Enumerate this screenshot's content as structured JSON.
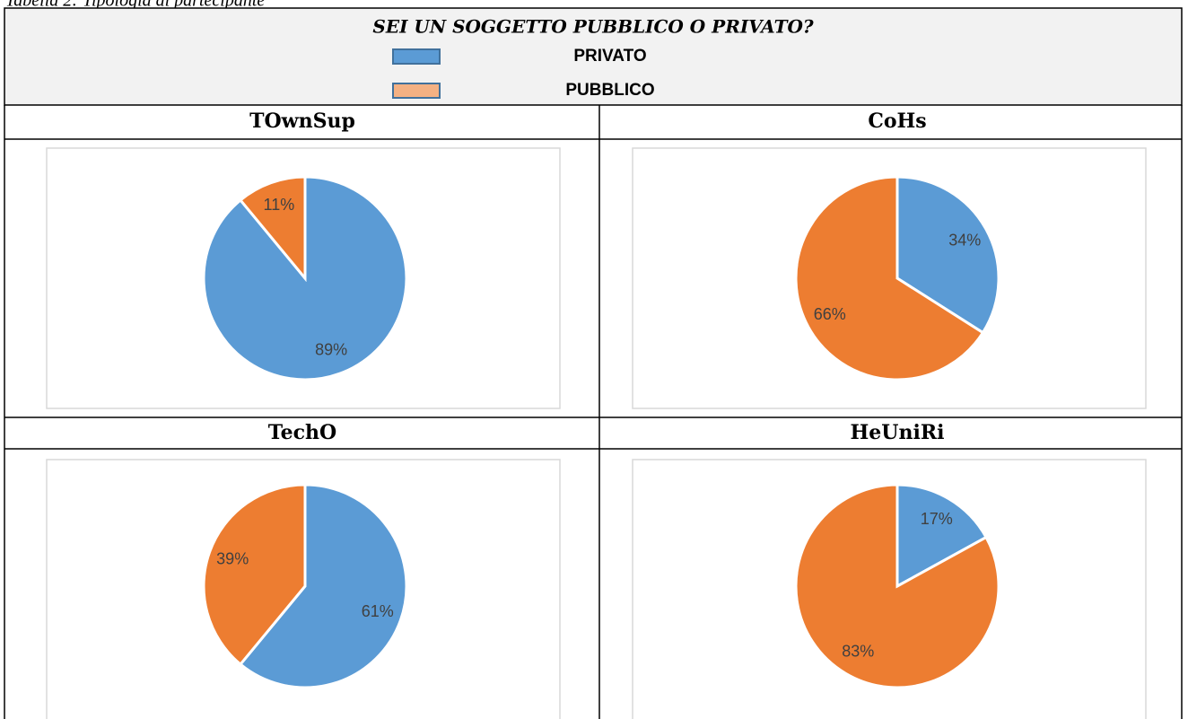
{
  "caption": "Tabella 2: Tipologia di partecipante",
  "header": {
    "title": "SEI UN SOGGETTO PUBBLICO O PRIVATO?",
    "legend": [
      {
        "label": "PRIVATO",
        "color": "#5b9bd5"
      },
      {
        "label": "PUBBLICO",
        "color": "#f4b183"
      }
    ]
  },
  "chart_data": [
    {
      "type": "pie",
      "title": "TOwnSup",
      "values": [
        89,
        11
      ],
      "value_labels": [
        "89%",
        "11%"
      ],
      "colors": [
        "#5b9bd5",
        "#ed7d31"
      ]
    },
    {
      "type": "pie",
      "title": "CoHs",
      "values": [
        34,
        66
      ],
      "value_labels": [
        "34%",
        "66%"
      ],
      "colors": [
        "#5b9bd5",
        "#ed7d31"
      ]
    },
    {
      "type": "pie",
      "title": "TechO",
      "values": [
        61,
        39
      ],
      "value_labels": [
        "61%",
        "39%"
      ],
      "colors": [
        "#5b9bd5",
        "#ed7d31"
      ]
    },
    {
      "type": "pie",
      "title": "HeUniRi",
      "values": [
        17,
        83
      ],
      "value_labels": [
        "17%",
        "83%"
      ],
      "colors": [
        "#5b9bd5",
        "#ed7d31"
      ]
    }
  ]
}
